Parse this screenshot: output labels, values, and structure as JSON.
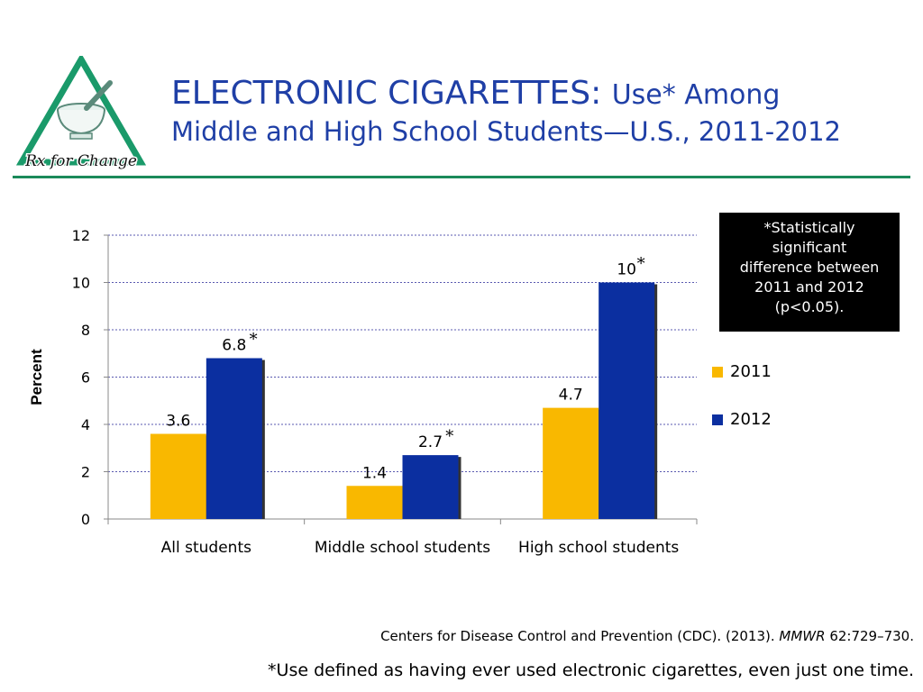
{
  "logo": {
    "text": "Rx for Change",
    "colors": {
      "triangle": "#1a9a6a",
      "fill": "#ffffff"
    }
  },
  "title": {
    "line1_main": "ELECTRONIC CIGARETTES:",
    "line1_rest": "Use* Among",
    "line2": "Middle and High School Students—U.S., 2011-2012"
  },
  "note": {
    "lines": [
      "*Statistically",
      "significant",
      "difference between",
      "2011 and 2012",
      "(p<0.05)."
    ]
  },
  "legend": {
    "items": [
      {
        "label": "2011",
        "color": "#f9b800"
      },
      {
        "label": "2012",
        "color": "#0b2fa0"
      }
    ]
  },
  "chart_data": {
    "type": "bar",
    "categories": [
      "All students",
      "Middle school students",
      "High school students"
    ],
    "series": [
      {
        "name": "2011",
        "values": [
          3.6,
          1.4,
          4.7
        ],
        "labels": [
          "3.6",
          "1.4",
          "4.7"
        ],
        "significant": [
          false,
          false,
          false
        ],
        "color": "#f9b800"
      },
      {
        "name": "2012",
        "values": [
          6.8,
          2.7,
          10
        ],
        "labels": [
          "6.8",
          "2.7",
          "10"
        ],
        "significant": [
          true,
          true,
          true
        ],
        "color": "#0b2fa0"
      }
    ],
    "ylabel": "Percent",
    "ylim": [
      0,
      12
    ],
    "yticks": [
      "0",
      "2",
      "4",
      "6",
      "8",
      "10",
      "12"
    ],
    "grid": true,
    "legend_position": "right"
  },
  "source": {
    "text_before": "Centers for Disease Control and Prevention (CDC). (2013).",
    "journal": "MMWR",
    "text_after": "62:729–730."
  },
  "footnote": "*Use defined as having ever used electronic cigarettes, even just one time."
}
